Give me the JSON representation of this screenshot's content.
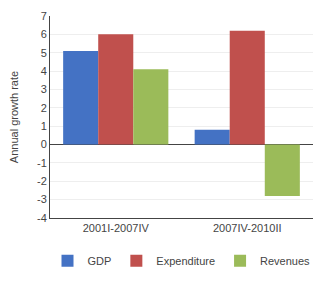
{
  "chart_data": {
    "type": "bar",
    "categories": [
      "2001I-2007IV",
      "2007IV-2010II"
    ],
    "series": [
      {
        "name": "GDP",
        "color": "#4472C4",
        "values": [
          5.1,
          0.8
        ]
      },
      {
        "name": "Expenditure",
        "color": "#C0504D",
        "values": [
          6.0,
          6.2
        ]
      },
      {
        "name": "Revenues",
        "color": "#9BBB59",
        "values": [
          4.1,
          -2.8
        ]
      }
    ],
    "ylabel": "Annual growth rate",
    "ylim": [
      -4,
      7
    ],
    "yticks": [
      -4,
      -3,
      -2,
      -1,
      0,
      1,
      2,
      3,
      4,
      5,
      6,
      7
    ],
    "grid": true,
    "legend": "bottom"
  }
}
